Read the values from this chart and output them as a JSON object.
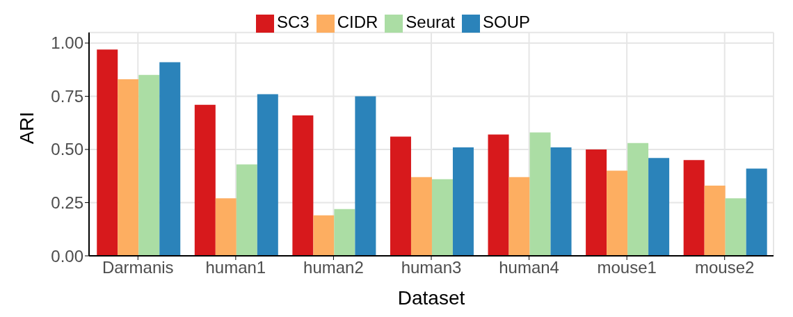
{
  "chart_data": {
    "type": "bar",
    "xlabel": "Dataset",
    "ylabel": "ARI",
    "categories": [
      "Darmanis",
      "human1",
      "human2",
      "human3",
      "human4",
      "mouse1",
      "mouse2"
    ],
    "series": [
      {
        "name": "SC3",
        "color": "#d7191c",
        "values": [
          0.97,
          0.71,
          0.66,
          0.56,
          0.57,
          0.5,
          0.45
        ]
      },
      {
        "name": "CIDR",
        "color": "#fdae61",
        "values": [
          0.83,
          0.27,
          0.19,
          0.37,
          0.37,
          0.4,
          0.33
        ]
      },
      {
        "name": "Seurat",
        "color": "#abdda4",
        "values": [
          0.85,
          0.43,
          0.22,
          0.36,
          0.58,
          0.53,
          0.27
        ]
      },
      {
        "name": "SOUP",
        "color": "#2b83ba",
        "values": [
          0.91,
          0.76,
          0.75,
          0.51,
          0.51,
          0.46,
          0.41
        ]
      }
    ],
    "ylim": [
      0,
      1.05
    ],
    "yticks": [
      {
        "value": 0,
        "label": "0.00"
      },
      {
        "value": 0.25,
        "label": "0.25"
      },
      {
        "value": 0.5,
        "label": "0.50"
      },
      {
        "value": 0.75,
        "label": "0.75"
      },
      {
        "value": 1,
        "label": "1.00"
      }
    ],
    "grid": true,
    "legend": "top"
  }
}
